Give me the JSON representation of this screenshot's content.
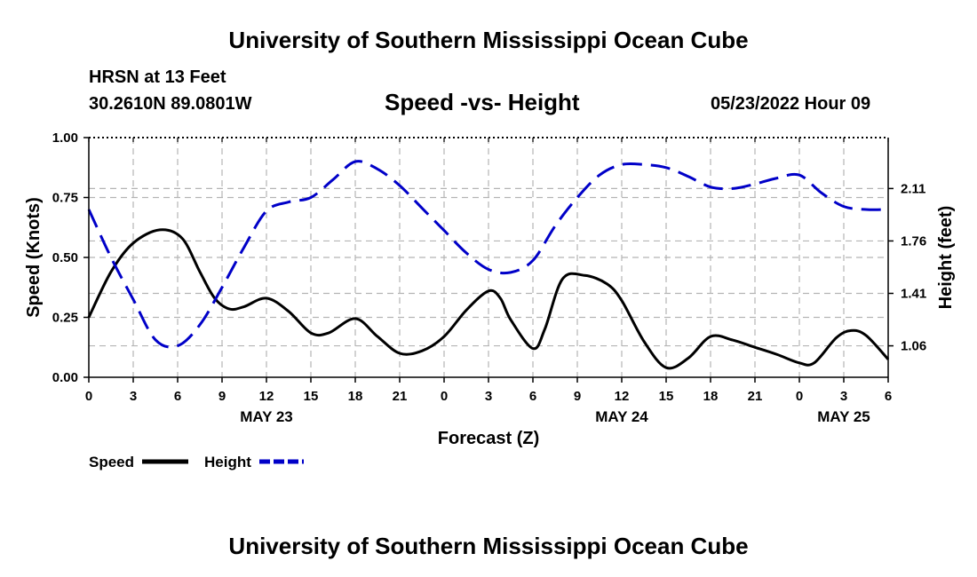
{
  "header": {
    "main_title": "University of Southern Mississippi Ocean Cube",
    "station": "HRSN at 13 Feet",
    "coords": "30.2610N  89.0801W",
    "chart_title": "Speed -vs- Height",
    "datetime": "05/23/2022 Hour 09"
  },
  "footer": {
    "title": "University of Southern Mississippi Ocean Cube"
  },
  "colors": {
    "speed": "#000000",
    "height": "#0000c8",
    "grid": "#b4b4b4"
  },
  "chart_data": {
    "type": "line",
    "title": "Speed -vs- Height",
    "xlabel": "Forecast (Z)",
    "ylabel": "Speed (Knots)",
    "y2label": "Height (feet)",
    "xlim": [
      0,
      54
    ],
    "ylim": [
      0,
      1
    ],
    "y2lim": [
      0.85,
      2.45
    ],
    "x_ticks": [
      0,
      3,
      6,
      9,
      12,
      15,
      18,
      21,
      24,
      27,
      30,
      33,
      36,
      39,
      42,
      45,
      48,
      51,
      54
    ],
    "x_tick_labels": [
      "0",
      "3",
      "6",
      "9",
      "12",
      "15",
      "18",
      "21",
      "0",
      "3",
      "6",
      "9",
      "12",
      "15",
      "18",
      "21",
      "0",
      "3",
      "6"
    ],
    "date_labels": [
      {
        "x": 12,
        "label": "MAY 23"
      },
      {
        "x": 36,
        "label": "MAY 24"
      },
      {
        "x": 51,
        "label": "MAY 25"
      }
    ],
    "y_ticks": [
      0,
      0.25,
      0.5,
      0.75,
      1.0
    ],
    "y_tick_labels": [
      "0.00",
      "0.25",
      "0.50",
      "0.75",
      "1.00"
    ],
    "y2_ticks": [
      1.06,
      1.41,
      1.76,
      2.11
    ],
    "y2_tick_labels": [
      "1.06",
      "1.41",
      "1.76",
      "2.11"
    ],
    "legend": "bottom-left",
    "series": [
      {
        "name": "Speed",
        "axis": "left",
        "style": "solid",
        "x": [
          0,
          1.5,
          3,
          4.8,
          6.3,
          7.5,
          8.5,
          9.5,
          10.5,
          12,
          13.5,
          15,
          16.2,
          18,
          19.5,
          21,
          22.5,
          24,
          25.5,
          27,
          27.8,
          28.5,
          30,
          30.8,
          32,
          33.5,
          35,
          36,
          37.5,
          39,
          40.5,
          42,
          43.5,
          45,
          46.5,
          48,
          49,
          50.5,
          51.5,
          52.5,
          54
        ],
        "y": [
          0.25,
          0.44,
          0.56,
          0.615,
          0.58,
          0.44,
          0.33,
          0.285,
          0.295,
          0.33,
          0.275,
          0.185,
          0.185,
          0.245,
          0.17,
          0.1,
          0.11,
          0.17,
          0.28,
          0.36,
          0.33,
          0.24,
          0.12,
          0.2,
          0.41,
          0.425,
          0.39,
          0.32,
          0.15,
          0.04,
          0.08,
          0.17,
          0.155,
          0.125,
          0.095,
          0.06,
          0.06,
          0.165,
          0.195,
          0.175,
          0.075
        ]
      },
      {
        "name": "Height",
        "axis": "right",
        "style": "dashed",
        "x": [
          0,
          1.5,
          3,
          4.5,
          6,
          7.5,
          9,
          10.5,
          12,
          13.5,
          15,
          16.5,
          18,
          19.5,
          21,
          22.5,
          24,
          25.5,
          27,
          28.5,
          30,
          31.5,
          33,
          34.5,
          36,
          37.5,
          39,
          40.5,
          42,
          43.5,
          45,
          46.5,
          48,
          49.5,
          51,
          52.5,
          54
        ],
        "y": [
          1.97,
          1.65,
          1.37,
          1.1,
          1.06,
          1.2,
          1.45,
          1.72,
          1.96,
          2.02,
          2.05,
          2.17,
          2.29,
          2.24,
          2.13,
          1.98,
          1.83,
          1.68,
          1.57,
          1.55,
          1.63,
          1.86,
          2.05,
          2.2,
          2.27,
          2.27,
          2.25,
          2.19,
          2.12,
          2.11,
          2.14,
          2.18,
          2.2,
          2.08,
          1.99,
          1.97,
          1.97
        ]
      }
    ]
  }
}
